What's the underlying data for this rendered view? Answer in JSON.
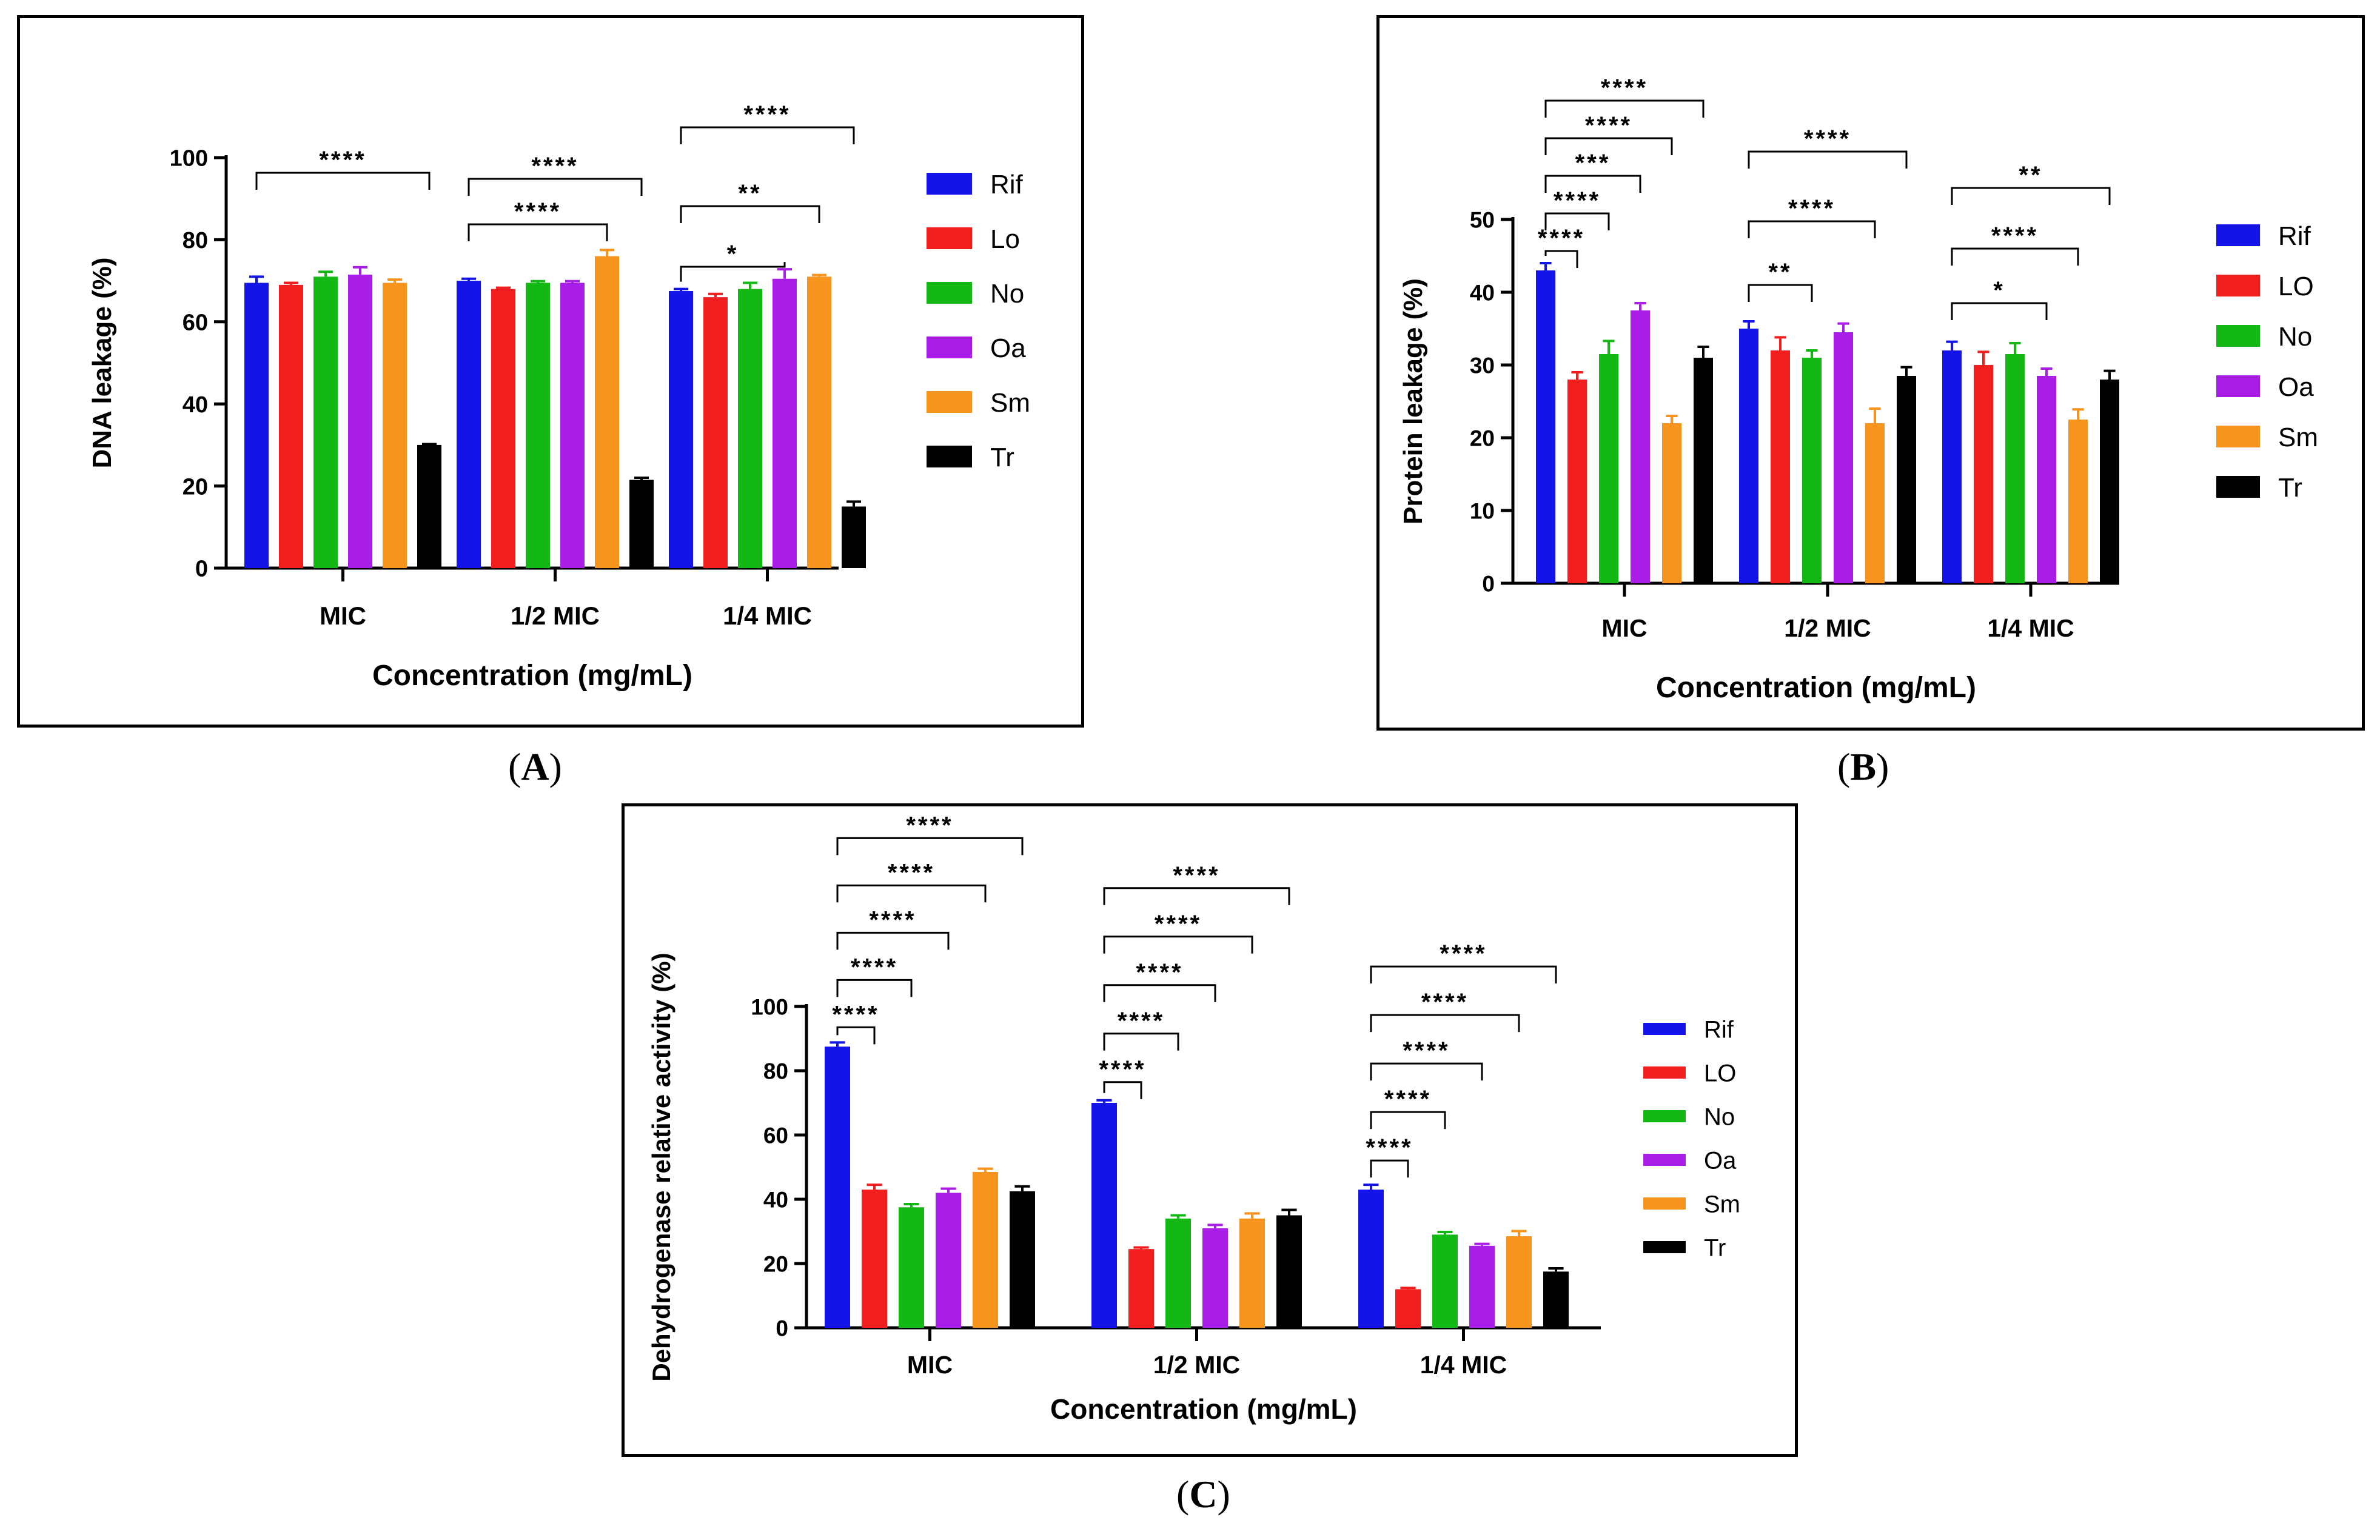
{
  "colors": {
    "Rif": "#1414e8",
    "Lo": "#f01e1e",
    "No": "#14b814",
    "Oa": "#a81ee6",
    "Sm": "#f7941d",
    "Tr": "#000000"
  },
  "panel_labels": {
    "a": {
      "open": "(",
      "letter": "A",
      "close": ")"
    },
    "b": {
      "open": "(",
      "letter": "B",
      "close": ")"
    },
    "c": {
      "open": "(",
      "letter": "C",
      "close": ")"
    }
  },
  "chart_data": [
    {
      "id": "a",
      "type": "bar",
      "xlabel": "Concentration (mg/mL)",
      "ylabel": "DNA leakage (%)",
      "ylim": [
        0,
        100
      ],
      "yticks": [
        0,
        20,
        40,
        60,
        80,
        100
      ],
      "categories": [
        "MIC",
        "1/2 MIC",
        "1/4 MIC"
      ],
      "series": [
        {
          "name": "Rif",
          "key": "Rif",
          "values": [
            69.5,
            70,
            67.5
          ],
          "errors": [
            1.5,
            0.5,
            0.5
          ]
        },
        {
          "name": "Lo",
          "key": "Lo",
          "values": [
            69,
            68,
            66
          ],
          "errors": [
            0.5,
            0.3,
            0.8
          ]
        },
        {
          "name": "No",
          "key": "No",
          "values": [
            71,
            69.5,
            68
          ],
          "errors": [
            1.2,
            0.4,
            1.5
          ]
        },
        {
          "name": "Oa",
          "key": "Oa",
          "values": [
            71.5,
            69.5,
            70.5
          ],
          "errors": [
            1.8,
            0.4,
            2.3
          ]
        },
        {
          "name": "Sm",
          "key": "Sm",
          "values": [
            69.5,
            76,
            71
          ],
          "errors": [
            0.8,
            1.5,
            0.4
          ]
        },
        {
          "name": "Tr",
          "key": "Tr",
          "values": [
            30,
            21.5,
            15
          ],
          "errors": [
            0.2,
            0.5,
            1.2
          ]
        }
      ],
      "significance": [
        {
          "group": 0,
          "from": 0,
          "to": 5,
          "label": "****"
        },
        {
          "group": 1,
          "from": 0,
          "to": 4,
          "label": "****"
        },
        {
          "group": 1,
          "from": 0,
          "to": 5,
          "label": "****"
        },
        {
          "group": 2,
          "from": 0,
          "to": 3,
          "label": "*"
        },
        {
          "group": 2,
          "from": 0,
          "to": 4,
          "label": "**"
        },
        {
          "group": 2,
          "from": 0,
          "to": 5,
          "label": "****"
        }
      ]
    },
    {
      "id": "b",
      "type": "bar",
      "xlabel": "Concentration (mg/mL)",
      "ylabel": "Protein leakage (%)",
      "ylim": [
        0,
        50
      ],
      "yticks": [
        0,
        10,
        20,
        30,
        40,
        50
      ],
      "categories": [
        "MIC",
        "1/2 MIC",
        "1/4 MIC"
      ],
      "series": [
        {
          "name": "Rif",
          "key": "Rif",
          "values": [
            43,
            35,
            32
          ],
          "errors": [
            1,
            1,
            1.2
          ]
        },
        {
          "name": "LO",
          "key": "Lo",
          "values": [
            28,
            32,
            30
          ],
          "errors": [
            1,
            1.8,
            1.8
          ]
        },
        {
          "name": "No",
          "key": "No",
          "values": [
            31.5,
            31,
            31.5
          ],
          "errors": [
            1.8,
            1,
            1.5
          ]
        },
        {
          "name": "Oa",
          "key": "Oa",
          "values": [
            37.5,
            34.5,
            28.5
          ],
          "errors": [
            1,
            1.2,
            1
          ]
        },
        {
          "name": "Sm",
          "key": "Sm",
          "values": [
            22,
            22,
            22.5
          ],
          "errors": [
            1,
            2,
            1.4
          ]
        },
        {
          "name": "Tr",
          "key": "Tr",
          "values": [
            31,
            28.5,
            28
          ],
          "errors": [
            1.5,
            1.2,
            1.2
          ]
        }
      ],
      "significance": [
        {
          "group": 0,
          "from": 0,
          "to": 1,
          "label": "****"
        },
        {
          "group": 0,
          "from": 0,
          "to": 2,
          "label": "****"
        },
        {
          "group": 0,
          "from": 0,
          "to": 3,
          "label": "***"
        },
        {
          "group": 0,
          "from": 0,
          "to": 4,
          "label": "****"
        },
        {
          "group": 0,
          "from": 0,
          "to": 5,
          "label": "****"
        },
        {
          "group": 1,
          "from": 0,
          "to": 2,
          "label": "**"
        },
        {
          "group": 1,
          "from": 0,
          "to": 4,
          "label": "****"
        },
        {
          "group": 1,
          "from": 0,
          "to": 5,
          "label": "****"
        },
        {
          "group": 2,
          "from": 0,
          "to": 3,
          "label": "*"
        },
        {
          "group": 2,
          "from": 0,
          "to": 4,
          "label": "****"
        },
        {
          "group": 2,
          "from": 0,
          "to": 5,
          "label": "**"
        }
      ]
    },
    {
      "id": "c",
      "type": "bar",
      "xlabel": "Concentration (mg/mL)",
      "ylabel": "Dehydrogenase relative activity (%)",
      "ylim": [
        0,
        100
      ],
      "yticks": [
        0,
        20,
        40,
        60,
        80,
        100
      ],
      "categories": [
        "MIC",
        "1/2 MIC",
        "1/4 MIC"
      ],
      "series": [
        {
          "name": "Rif",
          "key": "Rif",
          "values": [
            87.5,
            70,
            43
          ],
          "errors": [
            1.3,
            0.8,
            1.5
          ]
        },
        {
          "name": "LO",
          "key": "Lo",
          "values": [
            43,
            24.5,
            12
          ],
          "errors": [
            1.5,
            0.5,
            0.4
          ]
        },
        {
          "name": "No",
          "key": "No",
          "values": [
            37.5,
            34,
            29
          ],
          "errors": [
            1,
            1,
            0.8
          ]
        },
        {
          "name": "Oa",
          "key": "Oa",
          "values": [
            42,
            31,
            25.5
          ],
          "errors": [
            1.3,
            1,
            0.6
          ]
        },
        {
          "name": "Sm",
          "key": "Sm",
          "values": [
            48.5,
            34,
            28.5
          ],
          "errors": [
            1,
            1.6,
            1.6
          ]
        },
        {
          "name": "Tr",
          "key": "Tr",
          "values": [
            42.5,
            35,
            17.5
          ],
          "errors": [
            1.5,
            1.7,
            1
          ]
        }
      ],
      "significance": [
        {
          "group": 0,
          "from": 0,
          "to": 1,
          "label": "****"
        },
        {
          "group": 0,
          "from": 0,
          "to": 2,
          "label": "****"
        },
        {
          "group": 0,
          "from": 0,
          "to": 3,
          "label": "****"
        },
        {
          "group": 0,
          "from": 0,
          "to": 4,
          "label": "****"
        },
        {
          "group": 0,
          "from": 0,
          "to": 5,
          "label": "****"
        },
        {
          "group": 1,
          "from": 0,
          "to": 1,
          "label": "****"
        },
        {
          "group": 1,
          "from": 0,
          "to": 2,
          "label": "****"
        },
        {
          "group": 1,
          "from": 0,
          "to": 3,
          "label": "****"
        },
        {
          "group": 1,
          "from": 0,
          "to": 4,
          "label": "****"
        },
        {
          "group": 1,
          "from": 0,
          "to": 5,
          "label": "****"
        },
        {
          "group": 2,
          "from": 0,
          "to": 1,
          "label": "****"
        },
        {
          "group": 2,
          "from": 0,
          "to": 2,
          "label": "****"
        },
        {
          "group": 2,
          "from": 0,
          "to": 3,
          "label": "****"
        },
        {
          "group": 2,
          "from": 0,
          "to": 4,
          "label": "****"
        },
        {
          "group": 2,
          "from": 0,
          "to": 5,
          "label": "****"
        }
      ]
    }
  ]
}
